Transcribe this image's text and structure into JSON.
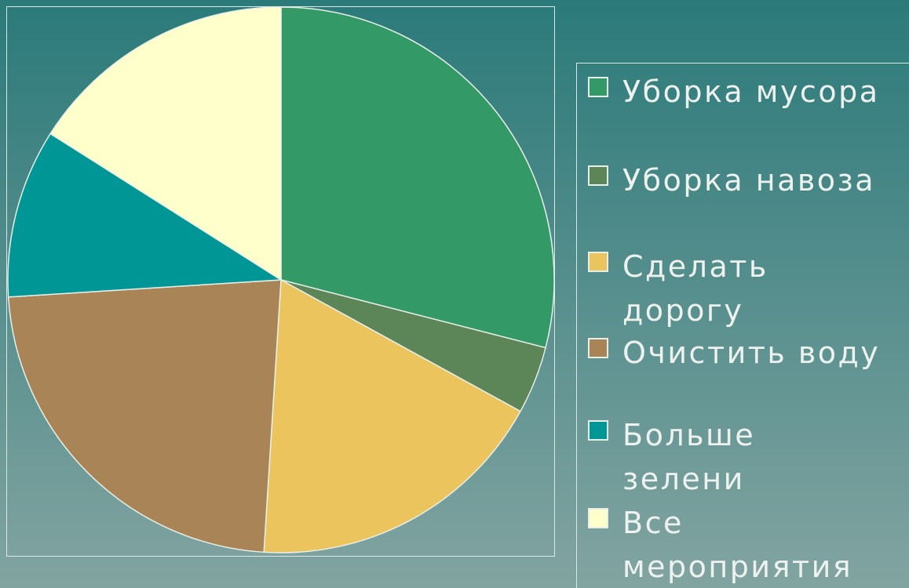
{
  "chart_data": {
    "type": "pie",
    "categories": [
      "Уборка мусора",
      "Уборка навоза",
      "Сделать дорогу",
      "Очистить воду",
      "Больше зелени",
      "Все мероприятия"
    ],
    "values": [
      29,
      4,
      18,
      23,
      10,
      16
    ],
    "colors": [
      "#339966",
      "#5c8558",
      "#ecc45e",
      "#a88456",
      "#009696",
      "#ffffcc"
    ],
    "legend": "right"
  }
}
